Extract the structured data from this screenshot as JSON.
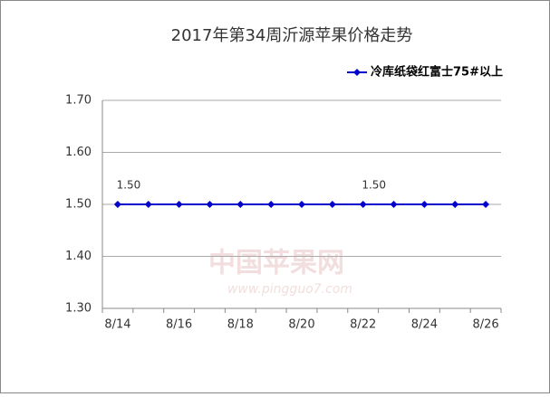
{
  "chart_data": {
    "type": "line",
    "title": "2017年第34周沂源苹果价格走势",
    "categories": [
      "8/14",
      null,
      "8/16",
      null,
      "8/18",
      null,
      "8/20",
      null,
      "8/22",
      null,
      "8/24",
      null,
      "8/26"
    ],
    "series": [
      {
        "name": "冷库纸袋红富士75#以上",
        "color": "#0000cc",
        "values": [
          1.5,
          1.5,
          1.5,
          1.5,
          1.5,
          1.5,
          1.5,
          1.5,
          1.5,
          1.5,
          1.5,
          1.5,
          1.5
        ],
        "value_labels": [
          "1.50",
          null,
          null,
          null,
          null,
          null,
          null,
          null,
          "1.50",
          null,
          null,
          null,
          null
        ]
      }
    ],
    "ylim": [
      1.3,
      1.7
    ],
    "yticks": [
      {
        "value": 1.3,
        "label": "1.30"
      },
      {
        "value": 1.4,
        "label": "1.40"
      },
      {
        "value": 1.5,
        "label": "1.50"
      },
      {
        "value": 1.6,
        "label": "1.60"
      },
      {
        "value": 1.7,
        "label": "1.70"
      }
    ],
    "grid": true,
    "legend": "top-right",
    "watermark": {
      "title": "中国苹果网",
      "url": "www.pingguo7.com"
    }
  }
}
